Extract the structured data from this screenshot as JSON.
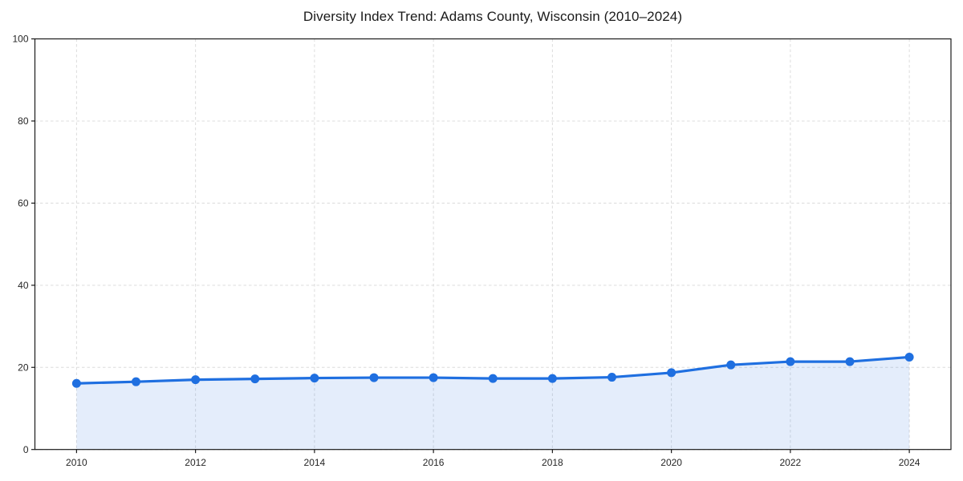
{
  "chart_data": {
    "type": "area",
    "title": "Diversity Index Trend: Adams County, Wisconsin (2010–2024)",
    "x": [
      2010,
      2011,
      2012,
      2013,
      2014,
      2015,
      2016,
      2017,
      2018,
      2019,
      2020,
      2021,
      2022,
      2023,
      2024
    ],
    "series": [
      {
        "name": "Diversity Index",
        "values": [
          16.1,
          16.5,
          17.0,
          17.2,
          17.4,
          17.5,
          17.5,
          17.3,
          17.3,
          17.6,
          18.7,
          20.6,
          21.4,
          21.4,
          22.5
        ]
      }
    ],
    "xlabel": "",
    "ylabel": "",
    "xlim": [
      2009.3,
      2024.7
    ],
    "ylim": [
      0,
      100
    ],
    "xticks": [
      2010,
      2012,
      2014,
      2016,
      2018,
      2020,
      2022,
      2024
    ],
    "yticks": [
      0,
      20,
      40,
      60,
      80,
      100
    ],
    "grid": true,
    "grid_style": "dashed",
    "legend_position": "none",
    "line_color": "#1f6fe0",
    "marker_color": "#1f6fe0",
    "marker_radius": 5.5,
    "line_width": 3.2,
    "fill_color": "#1f6fe0",
    "fill_opacity": 0.12,
    "grid_color": "#dcdcdc",
    "spine_color": "#1a1a1a",
    "tick_label_color": "#262626",
    "tick_font_size": 12,
    "title_color": "#1a1a1a"
  }
}
